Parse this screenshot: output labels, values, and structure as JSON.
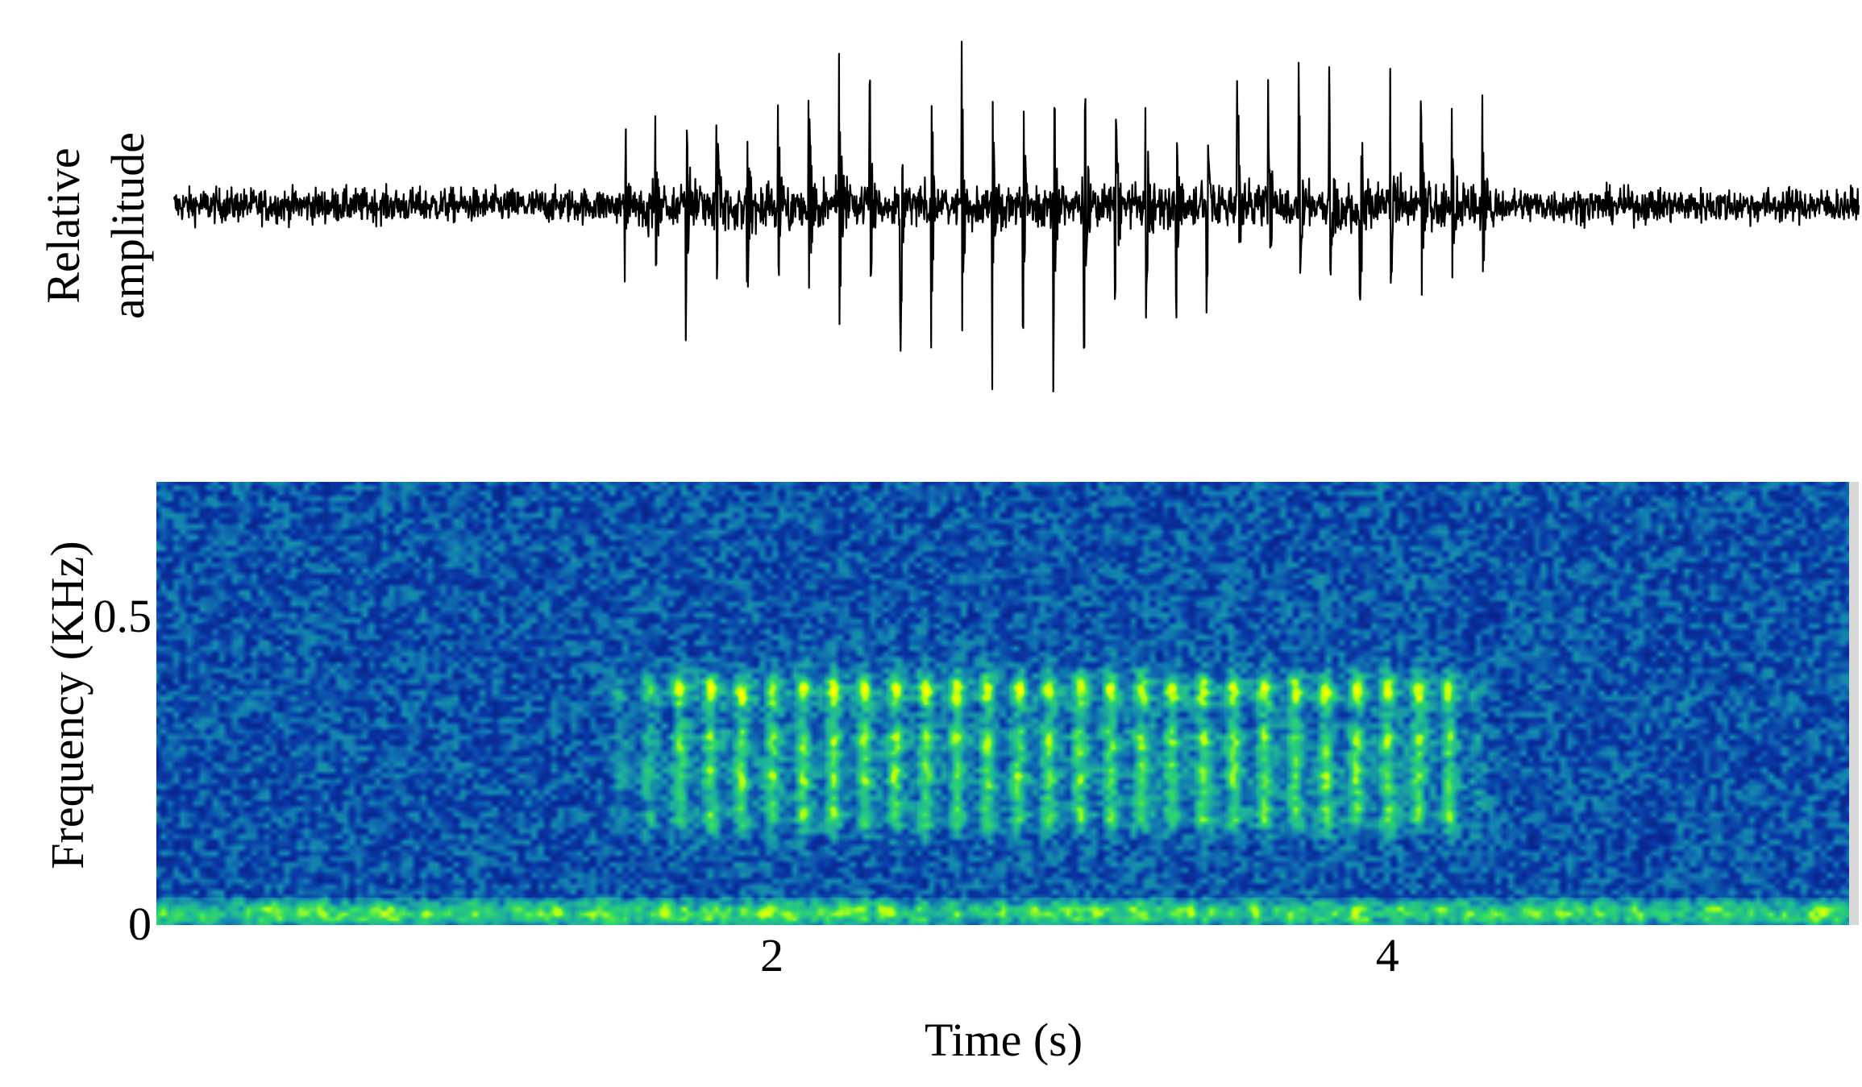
{
  "chart_data": [
    {
      "type": "line",
      "panel": "waveform",
      "ylabel_line1": "Relative",
      "ylabel_line2": "amplitude",
      "xlim": [
        0,
        5.5
      ],
      "ylim": [
        -1.0,
        1.0
      ],
      "background_noise_amplitude": 0.15,
      "pulse_train": {
        "start": 1.47,
        "end": 4.32,
        "pulse_interval_s": 0.1,
        "peak_amplitude": 1.0
      },
      "line_color": "#000000"
    },
    {
      "type": "heatmap",
      "panel": "spectrogram",
      "xlabel": "Time (s)",
      "ylabel": "Frequency (KHz)",
      "xlim": [
        0,
        5.5
      ],
      "ylim": [
        0,
        0.72
      ],
      "x_ticks": [
        2,
        4
      ],
      "y_ticks": [
        0,
        0.5
      ],
      "x_tick_labels": [
        "2",
        "4"
      ],
      "y_tick_labels": [
        "0",
        "0.5"
      ],
      "harmonic_bands_khz": [
        0.38,
        0.3,
        0.24,
        0.18
      ],
      "low_frequency_noise_khz": 0.02,
      "call_start_s": 1.47,
      "call_end_s": 4.32,
      "pulse_interval_s": 0.1,
      "colormap": [
        "#000033",
        "#081a7a",
        "#0a3aa6",
        "#127ab0",
        "#1fb39a",
        "#2fd86a",
        "#a8ff1a",
        "#ffff00"
      ]
    }
  ]
}
